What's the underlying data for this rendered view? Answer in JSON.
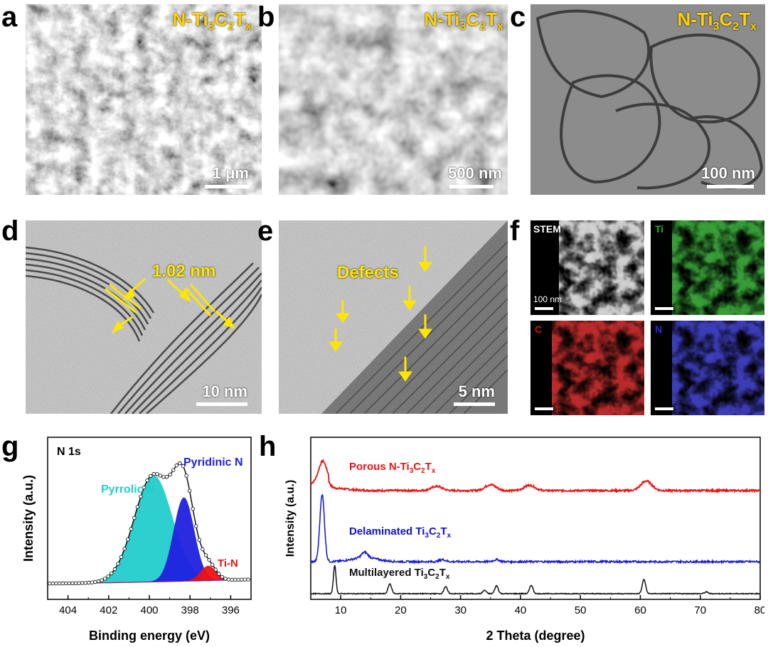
{
  "panels": {
    "a": {
      "letter": "a",
      "title_main": "N-Ti",
      "title_sub1": "3",
      "title_mid": "C",
      "title_sub2": "2",
      "title_end": "T",
      "title_sub3": "x",
      "scale": "1 μm"
    },
    "b": {
      "letter": "b",
      "title_main": "N-Ti",
      "title_sub1": "3",
      "title_mid": "C",
      "title_sub2": "2",
      "title_end": "T",
      "title_sub3": "x",
      "scale": "500 nm"
    },
    "c": {
      "letter": "c",
      "title_main": "N-Ti",
      "title_sub1": "3",
      "title_mid": "C",
      "title_sub2": "2",
      "title_end": "T",
      "title_sub3": "x",
      "scale": "100 nm"
    },
    "d": {
      "letter": "d",
      "annotation": "1.02 nm",
      "scale": "10 nm"
    },
    "e": {
      "letter": "e",
      "annotation": "Defects",
      "scale": "5 nm"
    },
    "f": {
      "letter": "f",
      "maps": [
        "STEM",
        "Ti",
        "C",
        "N"
      ],
      "map_colors": [
        "#ffffff",
        "#22b822",
        "#e01010",
        "#2a2ae0"
      ],
      "scale": "100 nm"
    },
    "g": {
      "letter": "g"
    },
    "h": {
      "letter": "h"
    }
  },
  "chart_data": [
    {
      "type": "area",
      "panel": "g",
      "inset_label": "N 1s",
      "xlabel": "Binding energy (eV)",
      "ylabel": "Intensity (a.u.)",
      "xlim": [
        405,
        395
      ],
      "x_ticks": [
        404,
        402,
        400,
        398,
        396
      ],
      "series": [
        {
          "name": "Pyrrolic N",
          "center": 399.8,
          "height": 0.79,
          "fwhm": 2.2,
          "color": "#22cccc"
        },
        {
          "name": "Pyridinic N",
          "center": 398.3,
          "height": 0.62,
          "fwhm": 1.2,
          "color": "#2020e0"
        },
        {
          "name": "Ti-N",
          "center": 397.1,
          "height": 0.11,
          "fwhm": 0.9,
          "color": "#ee1111"
        }
      ],
      "label_colors": [
        "#22cccc",
        "#2020e0",
        "#ee1111"
      ]
    },
    {
      "type": "line",
      "panel": "h",
      "xlabel": "2 Theta (degree)",
      "ylabel": "Intensity (a.u.)",
      "xlim": [
        5,
        80
      ],
      "x_ticks": [
        10,
        20,
        30,
        40,
        50,
        60,
        70,
        80
      ],
      "series": [
        {
          "name_main": "Porous N-Ti",
          "name_sub1": "3",
          "name_mid": "C",
          "name_sub2": "2",
          "name_end": "T",
          "name_sub3": "x",
          "color": "#ee1111",
          "peaks": [
            [
              7.0,
              1.0
            ],
            [
              26.0,
              0.2
            ],
            [
              35.0,
              0.28
            ],
            [
              41.5,
              0.25
            ],
            [
              61.0,
              0.45
            ]
          ]
        },
        {
          "name_main": "Delaminated Ti",
          "name_sub1": "3",
          "name_mid": "C",
          "name_sub2": "2",
          "name_end": "T",
          "name_sub3": "x",
          "color": "#1010dd",
          "peaks": [
            [
              6.9,
              1.0
            ],
            [
              14.0,
              0.08
            ],
            [
              27.0,
              0.03
            ],
            [
              36.0,
              0.03
            ]
          ]
        },
        {
          "name_main": "Multilayered Ti",
          "name_sub1": "3",
          "name_mid": "C",
          "name_sub2": "2",
          "name_end": "T",
          "name_sub3": "x",
          "color": "#111111",
          "peaks": [
            [
              9.0,
              1.0
            ],
            [
              18.2,
              0.35
            ],
            [
              27.5,
              0.25
            ],
            [
              34.0,
              0.12
            ],
            [
              36.0,
              0.28
            ],
            [
              41.8,
              0.3
            ],
            [
              60.6,
              0.5
            ],
            [
              71.0,
              0.06
            ]
          ]
        }
      ]
    }
  ]
}
